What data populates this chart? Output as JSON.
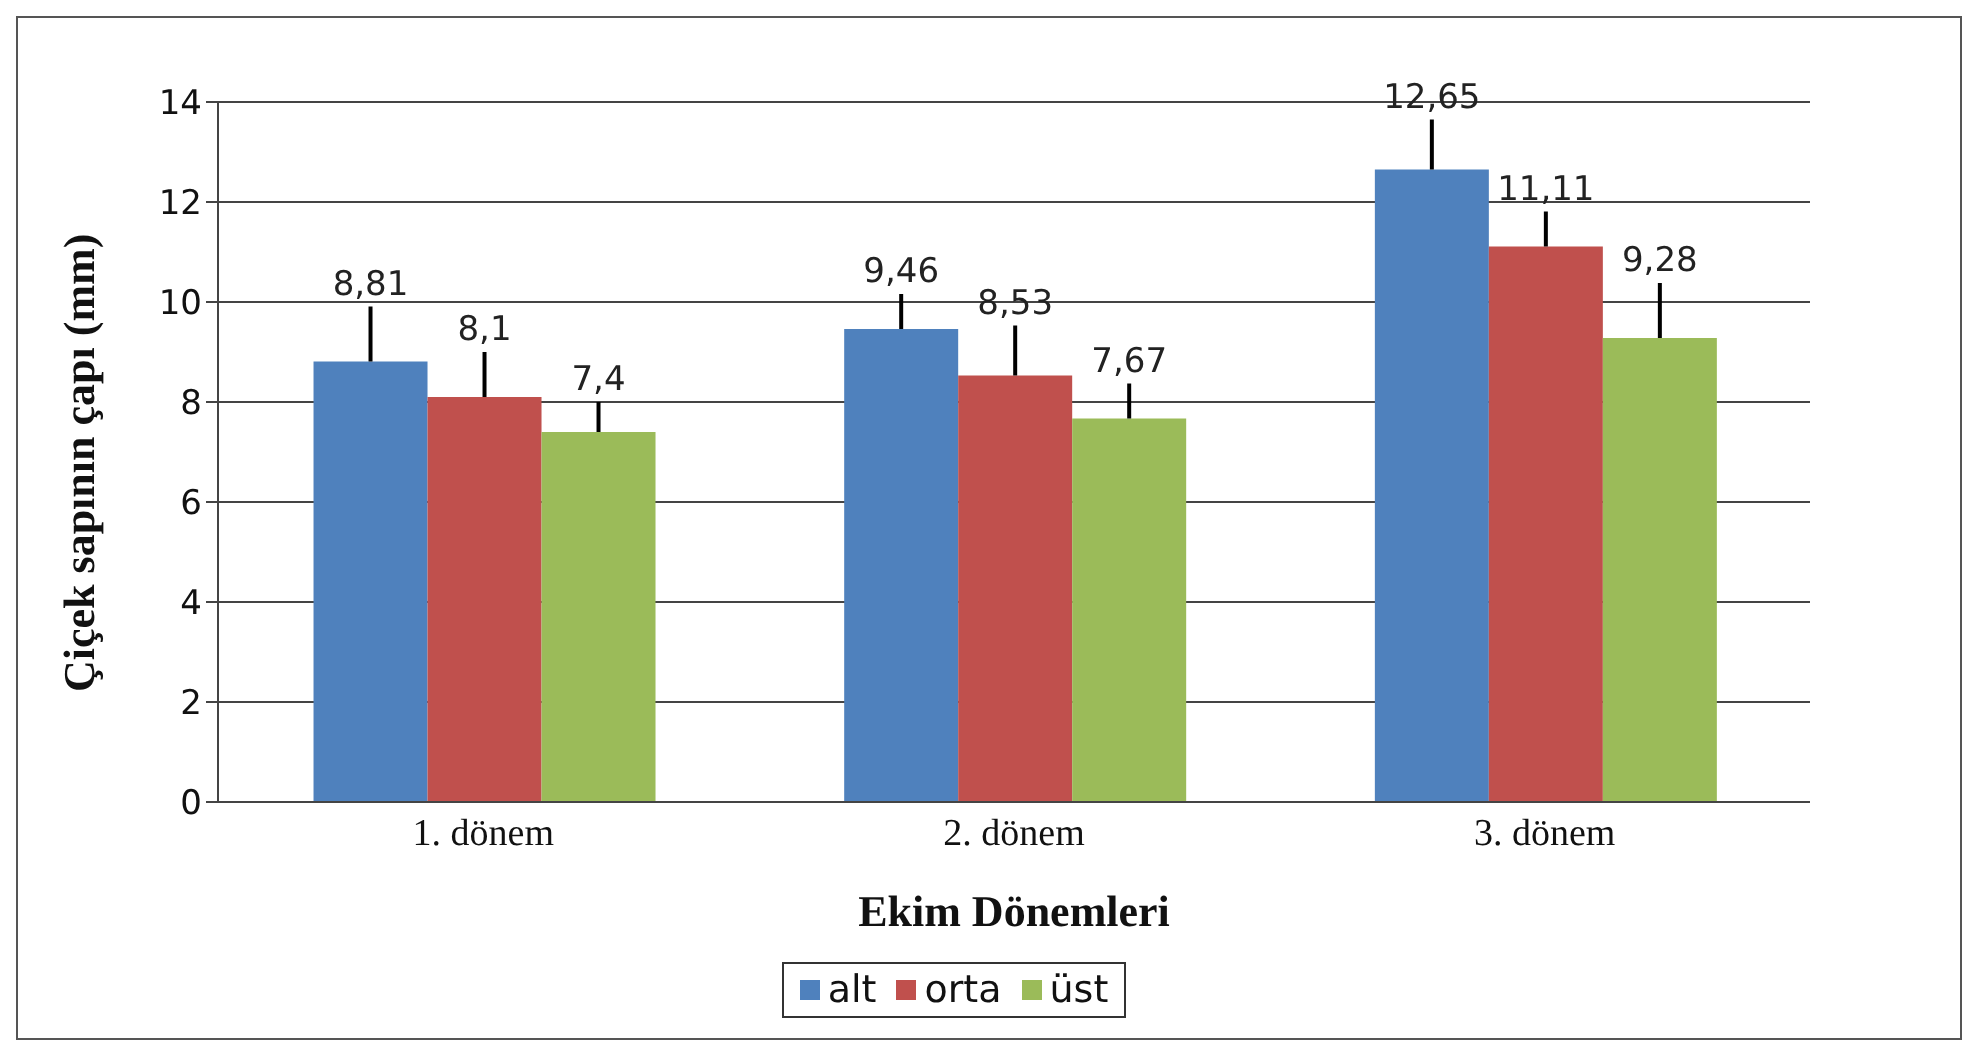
{
  "chart_data": {
    "type": "bar",
    "xlabel": "Ekim Dönemleri",
    "ylabel": "Çiçek sapının çapı (mm)",
    "categories": [
      "1. dönem",
      "2. dönem",
      "3. dönem"
    ],
    "series": [
      {
        "name": "alt",
        "color": "#4f81bd",
        "values": [
          8.81,
          9.46,
          12.65
        ],
        "value_labels": [
          "8,81",
          "9,46",
          "12,65"
        ],
        "errors": [
          [
            8.81,
            9.91
          ],
          [
            9.46,
            10.16
          ],
          [
            12.65,
            13.65
          ]
        ]
      },
      {
        "name": "orta",
        "color": "#c0504d",
        "values": [
          8.1,
          8.53,
          11.11
        ],
        "value_labels": [
          "8,1",
          "8,53",
          "11,11"
        ],
        "errors": [
          [
            8.1,
            9.0
          ],
          [
            8.53,
            9.53
          ],
          [
            11.11,
            11.81
          ]
        ]
      },
      {
        "name": "üst",
        "color": "#9bbb59",
        "values": [
          7.4,
          7.67,
          9.28
        ],
        "value_labels": [
          "7,4",
          "7,67",
          "9,28"
        ],
        "errors": [
          [
            7.4,
            8.0
          ],
          [
            7.67,
            8.37
          ],
          [
            9.28,
            10.38
          ]
        ]
      }
    ],
    "ylim": [
      0,
      14
    ],
    "yticks": [
      0,
      2,
      4,
      6,
      8,
      10,
      12,
      14
    ],
    "grid": "y",
    "legend": "bottom"
  }
}
